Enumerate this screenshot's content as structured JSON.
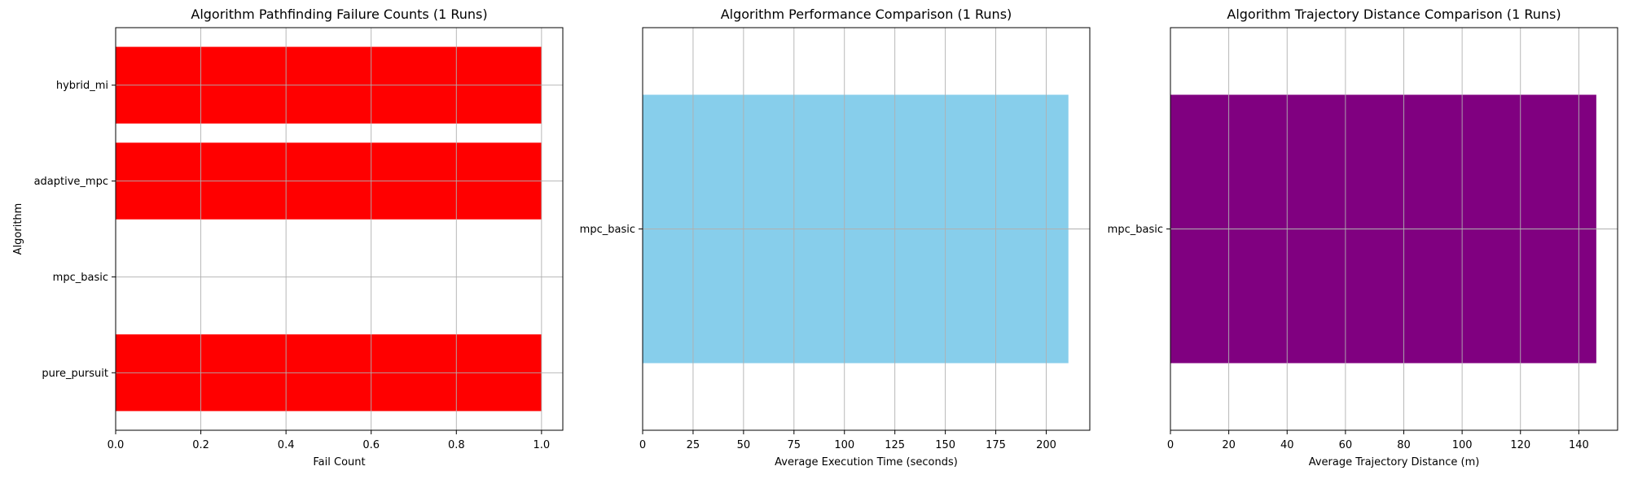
{
  "chart_data": [
    {
      "type": "bar",
      "orientation": "horizontal",
      "title": "Algorithm Pathfinding Failure Counts (1 Runs)",
      "xlabel": "Fail Count",
      "ylabel": "Algorithm",
      "categories": [
        "pure_pursuit",
        "mpc_basic",
        "adaptive_mpc",
        "hybrid_mi"
      ],
      "values": [
        1,
        0,
        1,
        1
      ],
      "xlim": [
        0,
        1.05
      ],
      "xticks": [
        0.0,
        0.2,
        0.4,
        0.6,
        0.8,
        1.0
      ],
      "xtick_labels": [
        "0.0",
        "0.2",
        "0.4",
        "0.6",
        "0.8",
        "1.0"
      ],
      "bar_color": "#ff0000",
      "grid": true
    },
    {
      "type": "bar",
      "orientation": "horizontal",
      "title": "Algorithm Performance Comparison (1 Runs)",
      "xlabel": "Average Execution Time (seconds)",
      "ylabel": "",
      "categories": [
        "mpc_basic"
      ],
      "values": [
        211
      ],
      "xlim": [
        0,
        221.6
      ],
      "xticks": [
        0,
        25,
        50,
        75,
        100,
        125,
        150,
        175,
        200
      ],
      "xtick_labels": [
        "0",
        "25",
        "50",
        "75",
        "100",
        "125",
        "150",
        "175",
        "200"
      ],
      "bar_color": "#87ceeb",
      "grid": true
    },
    {
      "type": "bar",
      "orientation": "horizontal",
      "title": "Algorithm Trajectory Distance Comparison (1 Runs)",
      "xlabel": "Average Trajectory Distance (m)",
      "ylabel": "",
      "categories": [
        "mpc_basic"
      ],
      "values": [
        146
      ],
      "xlim": [
        0,
        153.3
      ],
      "xticks": [
        0,
        20,
        40,
        60,
        80,
        100,
        120,
        140
      ],
      "xtick_labels": [
        "0",
        "20",
        "40",
        "60",
        "80",
        "100",
        "120",
        "140"
      ],
      "bar_color": "#800080",
      "grid": true
    }
  ]
}
